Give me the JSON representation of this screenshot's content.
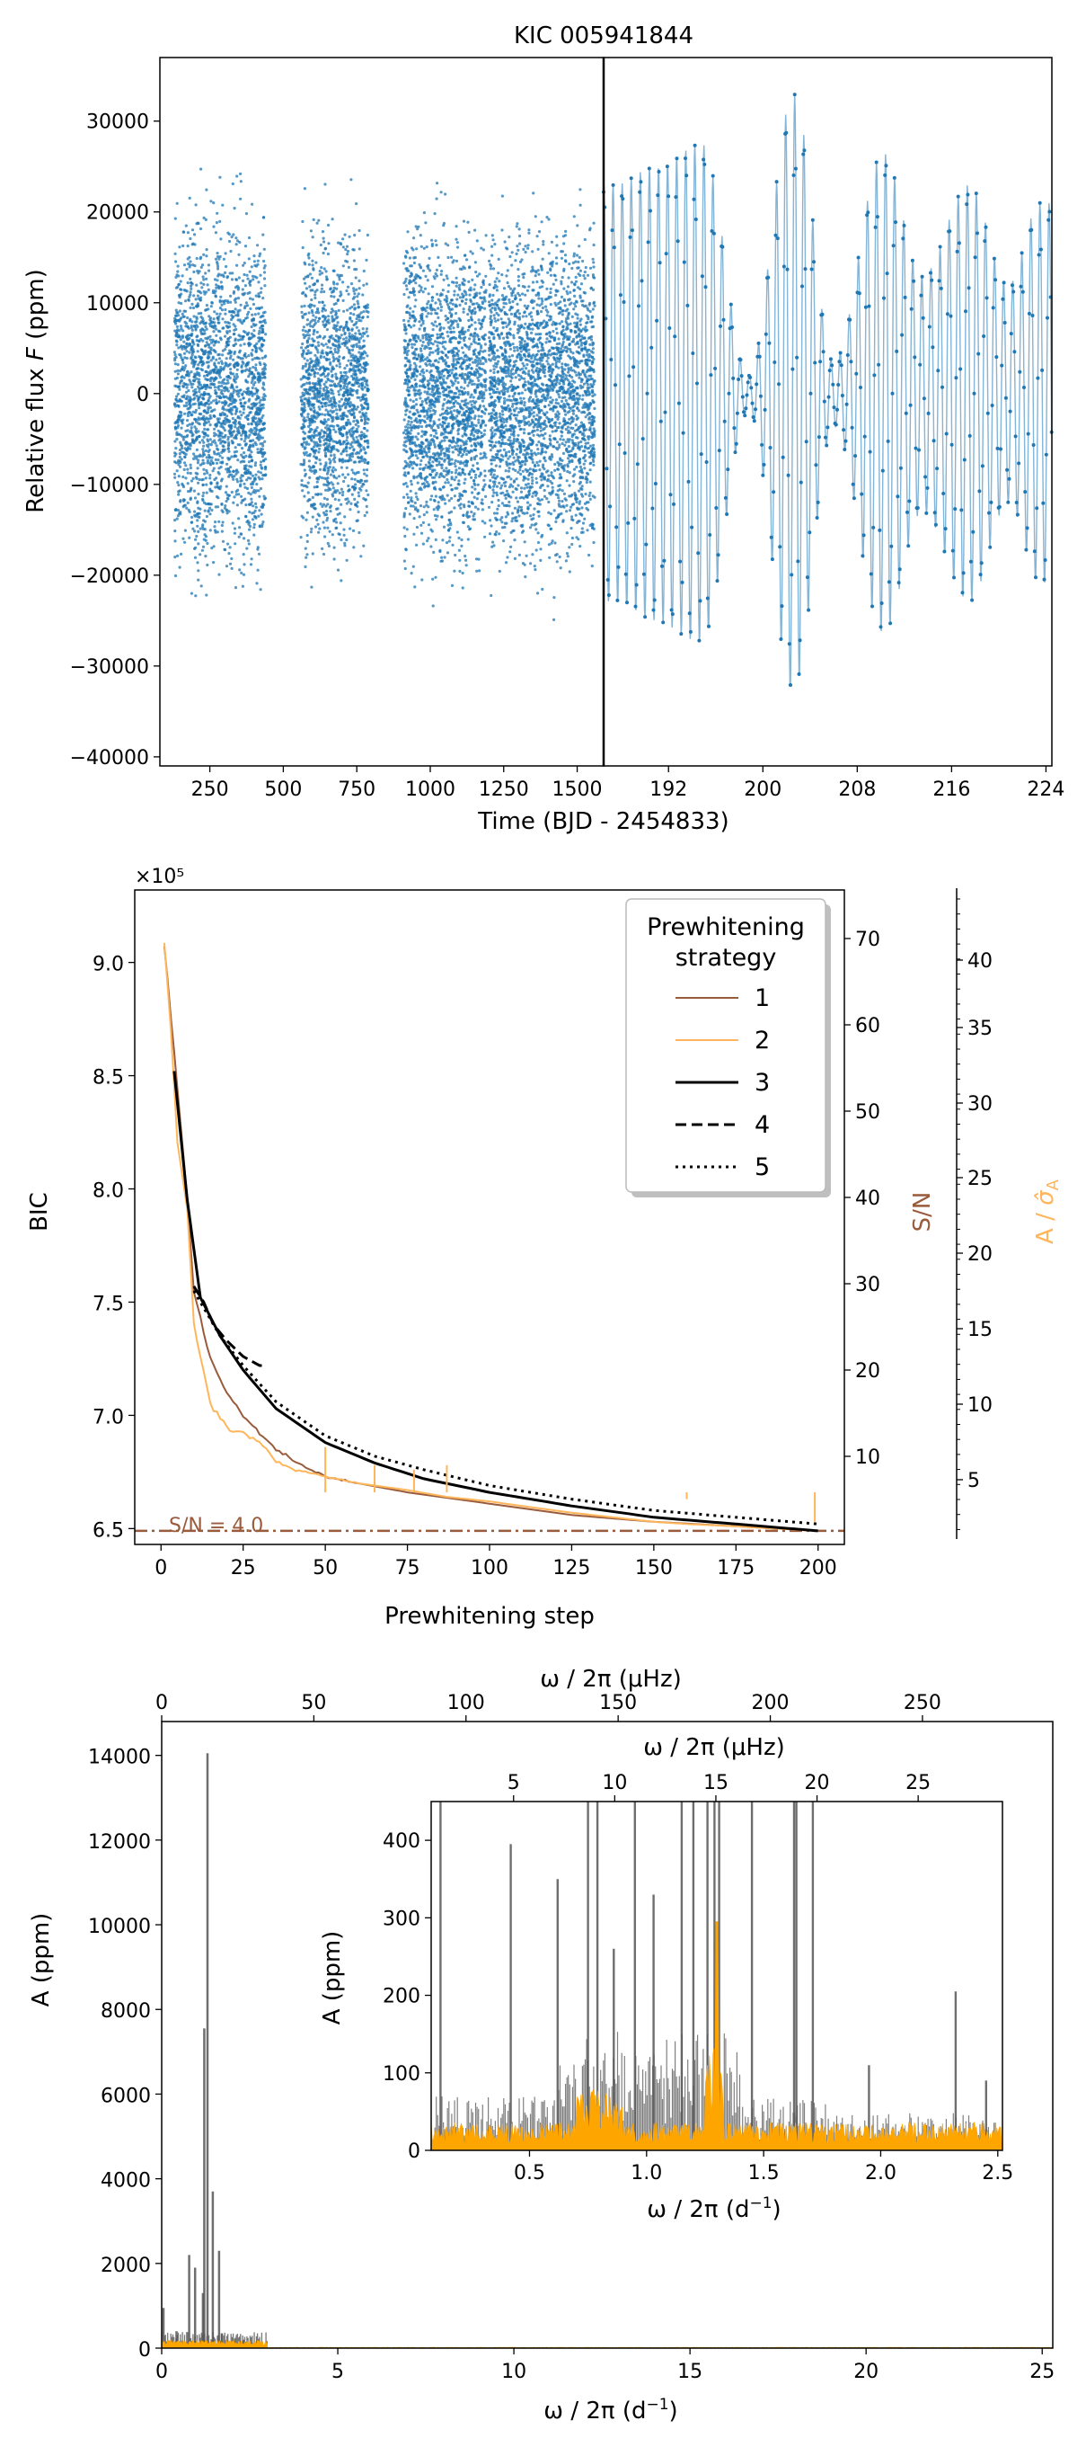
{
  "figure": {
    "colors": {
      "blue": "#1f77b4",
      "brown": "#9a5b3c",
      "orange": "#ffb55a",
      "orange_fill": "#ffa500",
      "black": "#000000",
      "gray": "#555555"
    }
  },
  "chart_data": [
    {
      "id": "lightcurve",
      "type": "scatter",
      "title": "KIC 005941844",
      "xlabel": "Time (BJD - 2454833)",
      "ylabel": "Relative flux F (ppm)",
      "ylabel_parts": {
        "pre": "Relative flux ",
        "italic": "F",
        "post": " (ppm)"
      },
      "ylim": [
        -41000,
        37000
      ],
      "yticks": [
        -40000,
        -30000,
        -20000,
        -10000,
        0,
        10000,
        20000,
        30000
      ],
      "ytick_labels": [
        "−40000",
        "−30000",
        "−20000",
        "−10000",
        "0",
        "10000",
        "20000",
        "30000"
      ],
      "left_panel": {
        "xlim": [
          80,
          1590
        ],
        "xticks": [
          250,
          500,
          750,
          1000,
          1250,
          1500
        ],
        "segments": [
          {
            "x0": 130,
            "x1": 440,
            "ymin": -36500,
            "ymax": 33500
          },
          {
            "x0": 560,
            "x1": 790,
            "ymin": -34000,
            "ymax": 30000
          },
          {
            "x0": 910,
            "x1": 1190,
            "ymin": -37000,
            "ymax": 30500
          },
          {
            "x0": 1200,
            "x1": 1560,
            "ymin": -36500,
            "ymax": 31500
          }
        ]
      },
      "right_panel": {
        "xlim": [
          186.5,
          224.5
        ],
        "xticks": [
          192,
          200,
          208,
          216,
          224
        ],
        "envelope_peaks": [
          {
            "x": 187.5,
            "amp": 23000
          },
          {
            "x": 190.8,
            "amp": 25000
          },
          {
            "x": 194.8,
            "amp": 27500
          },
          {
            "x": 198.8,
            "amp": 2000
          },
          {
            "x": 202.6,
            "amp": 33000
          },
          {
            "x": 206.0,
            "amp": 3500
          },
          {
            "x": 210.2,
            "amp": 26500
          },
          {
            "x": 213.5,
            "amp": 13000
          },
          {
            "x": 217.5,
            "amp": 23000
          },
          {
            "x": 220.8,
            "amp": 12000
          },
          {
            "x": 223.5,
            "amp": 21000
          }
        ]
      }
    },
    {
      "id": "bic",
      "type": "line",
      "xlabel": "Prewhitening step",
      "ylabel": "BIC",
      "y_offset_text": "×10⁵",
      "xlim": [
        -8,
        208
      ],
      "xticks": [
        0,
        25,
        50,
        75,
        100,
        125,
        150,
        175,
        200
      ],
      "ylim": [
        6.43,
        9.32
      ],
      "yticks": [
        6.5,
        7.0,
        7.5,
        8.0,
        8.5,
        9.0
      ],
      "ytick_labels": [
        "6.5",
        "7.0",
        "7.5",
        "8.0",
        "8.5",
        "9.0"
      ],
      "sn_axis": {
        "label": "S/N",
        "ticks": [
          10,
          20,
          30,
          40,
          50,
          60,
          70
        ]
      },
      "amp_axis": {
        "label_pre": "A / ",
        "label_sym": "σ̂",
        "label_sub": "A",
        "ticks": [
          5,
          10,
          15,
          20,
          25,
          30,
          35,
          40
        ]
      },
      "threshold": {
        "label": "S/N = 4.0",
        "value": 6.49
      },
      "legend": {
        "title_line1": "Prewhitening",
        "title_line2": "strategy",
        "entries": [
          {
            "label": "1",
            "color": "#9a5b3c",
            "dash": "solid",
            "width": 2
          },
          {
            "label": "2",
            "color": "#ffb55a",
            "dash": "solid",
            "width": 2
          },
          {
            "label": "3",
            "color": "#000000",
            "dash": "solid",
            "width": 3
          },
          {
            "label": "4",
            "color": "#000000",
            "dash": "dashed",
            "width": 3
          },
          {
            "label": "5",
            "color": "#000000",
            "dash": "dotted",
            "width": 3
          }
        ]
      },
      "series": [
        {
          "name": "1",
          "x": [
            1,
            3,
            5,
            8,
            10,
            15,
            20,
            25,
            30,
            35,
            40,
            50,
            60,
            75,
            90,
            100,
            125,
            150,
            175,
            200
          ],
          "y": [
            9.08,
            8.75,
            8.45,
            7.95,
            7.55,
            7.25,
            7.1,
            7.0,
            6.92,
            6.85,
            6.8,
            6.73,
            6.7,
            6.66,
            6.63,
            6.61,
            6.56,
            6.53,
            6.51,
            6.49
          ]
        },
        {
          "name": "2",
          "x": [
            1,
            3,
            5,
            8,
            10,
            15,
            20,
            25,
            30,
            35,
            40,
            50,
            60,
            75,
            87,
            100,
            125,
            150,
            160,
            175,
            200
          ],
          "y": [
            9.09,
            8.7,
            8.2,
            7.9,
            7.4,
            7.05,
            6.95,
            6.92,
            6.88,
            6.8,
            6.76,
            6.73,
            6.7,
            6.67,
            6.64,
            6.62,
            6.57,
            6.53,
            6.52,
            6.51,
            6.49
          ]
        },
        {
          "name": "3",
          "x": [
            4,
            8,
            12,
            18,
            25,
            35,
            50,
            65,
            80,
            100,
            125,
            150,
            175,
            200
          ],
          "y": [
            8.52,
            7.95,
            7.52,
            7.35,
            7.2,
            7.03,
            6.88,
            6.79,
            6.72,
            6.66,
            6.6,
            6.55,
            6.52,
            6.49
          ]
        },
        {
          "name": "4",
          "x": [
            10,
            13,
            16,
            20,
            25,
            30,
            32
          ],
          "y": [
            7.57,
            7.5,
            7.4,
            7.33,
            7.26,
            7.22,
            7.22
          ]
        },
        {
          "name": "5",
          "x": [
            10,
            18,
            25,
            35,
            50,
            65,
            80,
            100,
            125,
            150,
            175,
            200
          ],
          "y": [
            7.55,
            7.35,
            7.22,
            7.06,
            6.91,
            6.82,
            6.76,
            6.69,
            6.63,
            6.58,
            6.55,
            6.52
          ]
        }
      ]
    },
    {
      "id": "periodogram",
      "type": "bar",
      "xlabel_parts": {
        "pre": "ω / 2π (d",
        "sup": "−1",
        "post": ")"
      },
      "top_xlabel": "ω / 2π (μHz)",
      "ylabel": "A (ppm)",
      "xlim": [
        0,
        25.3
      ],
      "xticks": [
        0,
        5,
        10,
        15,
        20,
        25
      ],
      "top_xticks": [
        0,
        50,
        100,
        150,
        200,
        250
      ],
      "ylim": [
        0,
        14800
      ],
      "yticks": [
        0,
        2000,
        4000,
        6000,
        8000,
        10000,
        12000,
        14000
      ],
      "peaks": [
        {
          "x": 0.05,
          "amp": 950
        },
        {
          "x": 0.42,
          "amp": 400
        },
        {
          "x": 0.78,
          "amp": 2200
        },
        {
          "x": 0.95,
          "amp": 1900
        },
        {
          "x": 1.17,
          "amp": 1300
        },
        {
          "x": 1.21,
          "amp": 7550
        },
        {
          "x": 1.3,
          "amp": 14050
        },
        {
          "x": 1.45,
          "amp": 3700
        },
        {
          "x": 1.63,
          "amp": 2300
        },
        {
          "x": 1.71,
          "amp": 350
        },
        {
          "x": 2.32,
          "amp": 200
        }
      ],
      "inset": {
        "xlabel_parts": {
          "pre": "ω / 2π (d",
          "sup": "−1",
          "post": ")"
        },
        "top_xlabel": "ω / 2π (μHz)",
        "ylabel": "A (ppm)",
        "xlim": [
          0.08,
          2.52
        ],
        "xticks": [
          0.5,
          1.0,
          1.5,
          2.0,
          2.5
        ],
        "xtick_labels": [
          "0.5",
          "1.0",
          "1.5",
          "2.0",
          "2.5"
        ],
        "top_xticks": [
          5,
          10,
          15,
          20,
          25
        ],
        "ylim": [
          0,
          450
        ],
        "yticks": [
          0,
          100,
          200,
          300,
          400
        ],
        "peaks": [
          {
            "x": 0.12,
            "amp": 450
          },
          {
            "x": 0.42,
            "amp": 395
          },
          {
            "x": 0.62,
            "amp": 350
          },
          {
            "x": 0.75,
            "amp": 450
          },
          {
            "x": 0.79,
            "amp": 450
          },
          {
            "x": 0.86,
            "amp": 260
          },
          {
            "x": 0.95,
            "amp": 450
          },
          {
            "x": 1.03,
            "amp": 330
          },
          {
            "x": 1.15,
            "amp": 450
          },
          {
            "x": 1.2,
            "amp": 450
          },
          {
            "x": 1.26,
            "amp": 450
          },
          {
            "x": 1.29,
            "amp": 450
          },
          {
            "x": 1.31,
            "amp": 450
          },
          {
            "x": 1.45,
            "amp": 450
          },
          {
            "x": 1.63,
            "amp": 450
          },
          {
            "x": 1.64,
            "amp": 450
          },
          {
            "x": 1.71,
            "amp": 450
          },
          {
            "x": 1.95,
            "amp": 110
          },
          {
            "x": 2.32,
            "amp": 205
          },
          {
            "x": 2.45,
            "amp": 90
          }
        ]
      }
    }
  ]
}
